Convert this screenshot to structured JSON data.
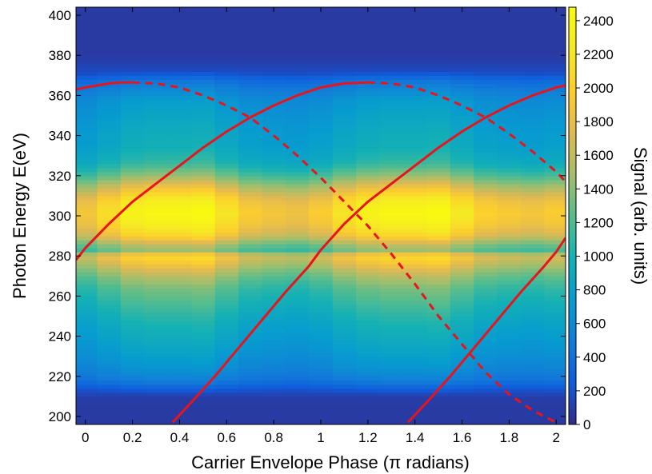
{
  "chart_data": {
    "type": "heatmap",
    "title": "",
    "xlabel": "Carrier Envelope Phase (π radians)",
    "ylabel": "Photon Energy E(eV)",
    "colorbar_label": "Signal (arb. units)",
    "xlim": [
      -0.04,
      2.04
    ],
    "ylim": [
      196,
      404
    ],
    "clim": [
      0,
      2480
    ],
    "x_ticks": [
      "0",
      "0.2",
      "0.4",
      "0.6",
      "0.8",
      "1",
      "1.2",
      "1.4",
      "1.6",
      "1.8",
      "2"
    ],
    "y_ticks": [
      "200",
      "220",
      "240",
      "260",
      "280",
      "300",
      "320",
      "340",
      "360",
      "380",
      "400"
    ],
    "colorbar_ticks": [
      "0",
      "200",
      "400",
      "600",
      "800",
      "1000",
      "1200",
      "1400",
      "1600",
      "1800",
      "2000",
      "2200",
      "2400"
    ],
    "colormap": "parula",
    "grid": false,
    "signal_profile": {
      "energy": [
        196,
        210,
        214,
        218,
        225,
        232,
        240,
        248,
        256,
        264,
        270,
        276,
        280,
        283,
        286,
        290,
        296,
        302,
        308,
        314,
        320,
        326,
        334,
        342,
        350,
        358,
        364,
        368,
        372,
        380,
        404
      ],
      "signal": [
        80,
        90,
        260,
        480,
        650,
        760,
        860,
        960,
        1100,
        1250,
        1450,
        1750,
        1950,
        1350,
        1500,
        1900,
        2150,
        2250,
        2100,
        1750,
        1350,
        1050,
        900,
        850,
        780,
        700,
        520,
        380,
        160,
        80,
        80
      ]
    },
    "phase_modulation": {
      "phase": [
        0,
        0.1,
        0.2,
        0.3,
        0.4,
        0.5,
        0.6,
        0.7,
        0.8,
        0.9,
        1.0,
        1.1,
        1.2,
        1.3,
        1.4,
        1.5,
        1.6,
        1.7,
        1.8,
        1.9,
        2.0
      ],
      "factor": [
        0.85,
        0.95,
        1.05,
        1.08,
        1.08,
        1.1,
        0.98,
        0.88,
        0.85,
        0.83,
        0.88,
        0.98,
        1.05,
        1.08,
        1.08,
        1.1,
        1.0,
        0.9,
        0.87,
        0.85,
        0.88
      ]
    },
    "series": [
      {
        "style": "solid",
        "color": "#e8141c",
        "x": [
          -0.04,
          0.0,
          0.05,
          0.1,
          0.15,
          0.2
        ],
        "y": [
          363,
          364,
          365,
          366,
          366.5,
          366.5
        ]
      },
      {
        "style": "solid",
        "color": "#e8141c",
        "x": [
          -0.04,
          0.0,
          0.1,
          0.2,
          0.3,
          0.4,
          0.5,
          0.6,
          0.7,
          0.8,
          0.9,
          1.0,
          1.1,
          1.2
        ],
        "y": [
          278,
          284,
          296,
          307,
          316,
          325,
          334,
          342,
          349,
          355,
          360,
          364,
          366,
          366.5
        ]
      },
      {
        "style": "dashed",
        "color": "#e8141c",
        "x": [
          0.2,
          0.3,
          0.4,
          0.5,
          0.6,
          0.7,
          0.8,
          0.9,
          1.0,
          1.1,
          1.2,
          1.3,
          1.4,
          1.5,
          1.6,
          1.7,
          1.8,
          1.9,
          2.0
        ],
        "y": [
          366.5,
          366,
          364,
          360,
          355,
          349,
          340,
          330,
          319,
          307,
          295,
          281,
          266,
          250,
          236,
          222,
          211,
          203,
          197
        ]
      },
      {
        "style": "solid",
        "color": "#e8141c",
        "x": [
          0.37,
          0.45,
          0.55,
          0.65,
          0.75,
          0.85,
          0.95,
          1.0,
          1.1,
          1.2,
          1.3,
          1.4,
          1.5,
          1.6,
          1.7,
          1.8,
          1.9,
          2.0,
          2.04
        ],
        "y": [
          197,
          207,
          220,
          234,
          248,
          262,
          275,
          283,
          296,
          307,
          316,
          325,
          334,
          342,
          349,
          355,
          360,
          364,
          365
        ]
      },
      {
        "style": "dashed",
        "color": "#e8141c",
        "x": [
          1.2,
          1.3,
          1.4,
          1.5,
          1.6,
          1.7,
          1.8,
          1.9,
          2.0,
          2.04
        ],
        "y": [
          366.5,
          366,
          364,
          360,
          355,
          349,
          341,
          332,
          322,
          317
        ]
      },
      {
        "style": "solid",
        "color": "#e8141c",
        "x": [
          1.37,
          1.45,
          1.55,
          1.65,
          1.75,
          1.85,
          1.95,
          2.0,
          2.04
        ],
        "y": [
          197,
          207,
          220,
          234,
          248,
          262,
          275,
          282,
          289
        ]
      }
    ]
  }
}
